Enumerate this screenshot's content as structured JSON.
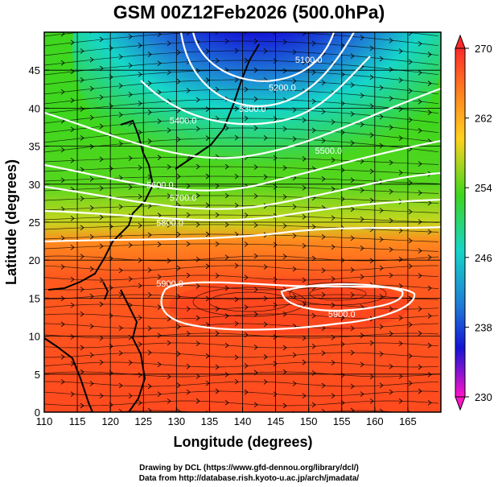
{
  "title": "GSM 00Z12Feb2026 (500.0hPa)",
  "xaxis": {
    "label": "Longitude (degrees)",
    "range": [
      110,
      170
    ],
    "ticks": [
      110,
      115,
      120,
      125,
      130,
      135,
      140,
      145,
      150,
      155,
      160,
      165
    ]
  },
  "yaxis": {
    "label": "Latitude  (degrees)",
    "range": [
      0,
      50
    ],
    "ticks": [
      0,
      5,
      10,
      15,
      20,
      25,
      30,
      35,
      40,
      45
    ]
  },
  "colorbar": {
    "range": [
      230,
      270
    ],
    "labels": [
      "270",
      "262",
      "254",
      "246",
      "238",
      "230"
    ],
    "colors": [
      "#ff2a2a",
      "#ff8a1e",
      "#ffd21e",
      "#3ed61e",
      "#16d6c8",
      "#1e7ad6",
      "#1414d6",
      "#ff14c8"
    ]
  },
  "contour_labels": [
    {
      "text": "5100.0",
      "lon": 150,
      "lat": 46
    },
    {
      "text": "5200.0",
      "lon": 146,
      "lat": 42.3
    },
    {
      "text": "5300.0",
      "lon": 141.5,
      "lat": 39.5
    },
    {
      "text": "5400.0",
      "lon": 131,
      "lat": 38
    },
    {
      "text": "5500.0",
      "lon": 153,
      "lat": 34
    },
    {
      "text": "5600.0",
      "lon": 127.5,
      "lat": 29.5
    },
    {
      "text": "5700.0",
      "lon": 131,
      "lat": 27.8
    },
    {
      "text": "5800.0",
      "lon": 129,
      "lat": 24.5
    },
    {
      "text": "5900.0",
      "lon": 129,
      "lat": 16.5
    },
    {
      "text": "5900.0",
      "lon": 155,
      "lat": 12.5
    }
  ],
  "footer": {
    "line1": "Drawing by DCL (https://www.gfd-dennou.org/library/dcl/)",
    "line2": "Data from http://database.rish.kyoto-u.ac.jp/arch/jmadata/"
  }
}
